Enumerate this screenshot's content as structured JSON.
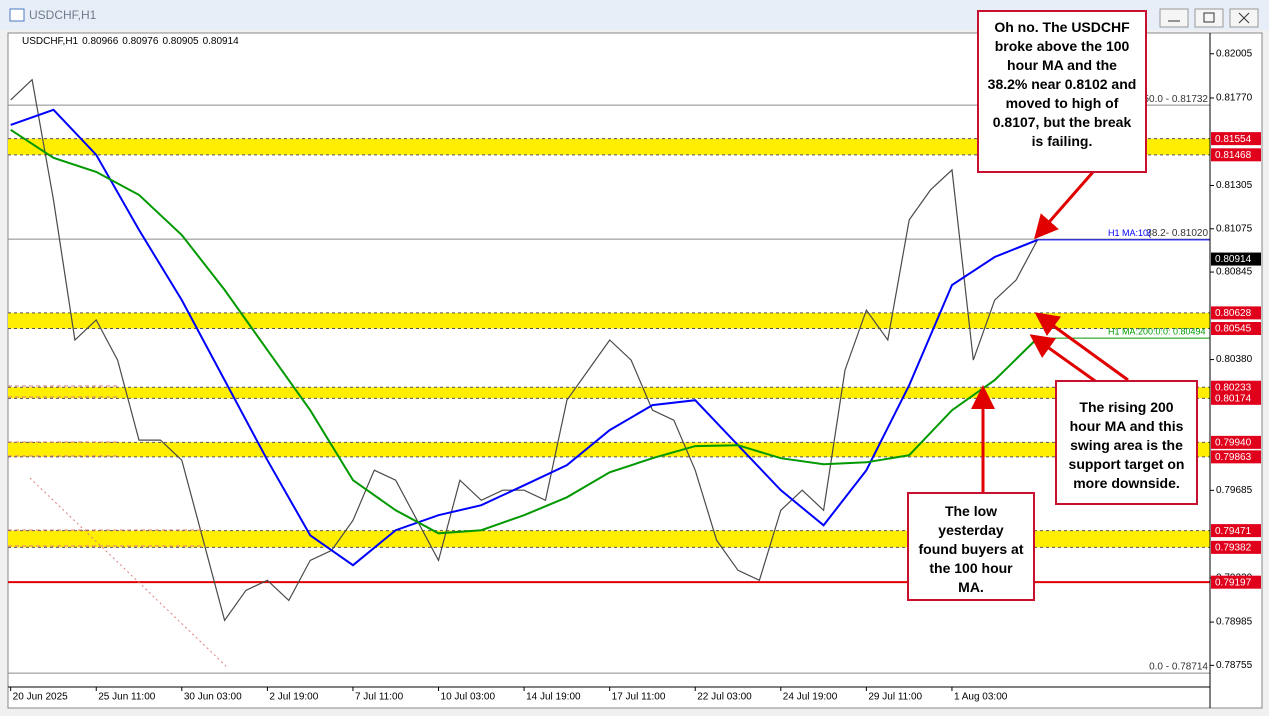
{
  "window_title": "USDCHF,H1",
  "chart_data": {
    "type": "line",
    "title": "USDCHF,H1",
    "ohlc": [
      0.80966,
      0.80976,
      0.80905,
      0.80914
    ],
    "xlim": [
      -2,
      897
    ],
    "ylim": [
      0.7864,
      0.8211
    ],
    "xticks": [
      {
        "value": 0,
        "label": "20 Jun 2025"
      },
      {
        "value": 64,
        "label": "25 Jun 11:00"
      },
      {
        "value": 128,
        "label": "30 Jun 03:00"
      },
      {
        "value": 192,
        "label": "2 Jul 19:00"
      },
      {
        "value": 256,
        "label": "7 Jul 11:00"
      },
      {
        "value": 320,
        "label": "10 Jul 03:00"
      },
      {
        "value": 384,
        "label": "14 Jul 19:00"
      },
      {
        "value": 448,
        "label": "17 Jul 11:00"
      },
      {
        "value": 512,
        "label": "22 Jul 03:00"
      },
      {
        "value": 576,
        "label": "24 Jul 19:00"
      },
      {
        "value": 640,
        "label": "29 Jul 11:00"
      },
      {
        "value": 704,
        "label": "1 Aug 03:00"
      }
    ],
    "yticks": [
      0.82005,
      {
        "value": 0.8177,
        "label": "0.81770"
      },
      0.81305,
      0.81075,
      0.80845,
      {
        "value": 0.8038,
        "label": "0.80380"
      },
      0.79685,
      {
        "value": 0.7922,
        "label": "0.79220"
      },
      0.78985,
      0.78755
    ],
    "x": [
      0,
      16,
      32,
      48,
      64,
      80,
      96,
      112,
      128,
      144,
      160,
      176,
      192,
      208,
      224,
      240,
      256,
      272,
      288,
      304,
      320,
      336,
      352,
      368,
      384,
      400,
      416,
      432,
      448,
      464,
      480,
      496,
      512,
      528,
      544,
      560,
      576,
      592,
      608,
      624,
      640,
      656,
      672,
      688,
      704,
      720,
      736,
      752,
      768
    ],
    "series": [
      {
        "color": "#4a4a4a",
        "values": [
          0.8176,
          0.81867,
          0.81228,
          0.80484,
          0.8059,
          0.80377,
          0.79952,
          0.79952,
          0.79845,
          0.7942,
          0.78994,
          0.79154,
          0.79207,
          0.791,
          0.79313,
          0.79366,
          0.79526,
          0.79792,
          0.79739,
          0.79526,
          0.79313,
          0.79739,
          0.79632,
          0.79686,
          0.79686,
          0.79632,
          0.80164,
          0.80324,
          0.80484,
          0.80377,
          0.80111,
          0.80058,
          0.79792,
          0.7942,
          0.7926,
          0.79207,
          0.79579,
          0.79686,
          0.79579,
          0.80324,
          0.80643,
          0.80484,
          0.81122,
          0.81282,
          0.81388,
          0.80377,
          0.80696,
          0.80803,
          0.81016
        ]
      },
      {
        "color": "#0000ff",
        "x": [
          0,
          32,
          64,
          96,
          128,
          160,
          192,
          224,
          256,
          288,
          320,
          352,
          384,
          416,
          448,
          480,
          512,
          544,
          576,
          608,
          640,
          672,
          704,
          736,
          768
        ],
        "values": [
          0.81627,
          0.81707,
          0.81468,
          0.81069,
          0.80696,
          0.80271,
          0.79845,
          0.79446,
          0.79287,
          0.79473,
          0.79553,
          0.79606,
          0.79712,
          0.79819,
          0.80005,
          0.80138,
          0.80164,
          0.79925,
          0.79686,
          0.79499,
          0.79792,
          0.80244,
          0.80776,
          0.80925,
          0.81016
        ]
      },
      {
        "color": "#009900",
        "x": [
          0,
          32,
          64,
          96,
          128,
          160,
          192,
          224,
          256,
          288,
          320,
          352,
          384,
          416,
          448,
          480,
          512,
          544,
          576,
          608,
          640,
          672,
          704,
          736,
          768
        ],
        "values": [
          0.81601,
          0.81452,
          0.81377,
          0.81255,
          0.81042,
          0.8075,
          0.8043,
          0.80111,
          0.79739,
          0.79579,
          0.79457,
          0.79473,
          0.79553,
          0.79648,
          0.79781,
          0.79856,
          0.7992,
          0.79925,
          0.79856,
          0.79824,
          0.79834,
          0.79872,
          0.80111,
          0.80271,
          0.80494
        ]
      }
    ],
    "ma_labels": [
      "H1 MA:10(",
      "H1 MA:200:0:0: 0.80494"
    ],
    "zones": [
      [
        0.81554,
        0.81468
      ],
      [
        0.80628,
        0.80545
      ],
      [
        0.80233,
        0.80174
      ],
      [
        {
          "value": 0.7994,
          "label": "0.79940"
        },
        0.79863
      ],
      [
        0.79471,
        0.79382
      ]
    ],
    "zone_color": "#ffee00",
    "support_line": 0.79197,
    "fib_levels": [
      {
        "value": 0.81732,
        "label": "50.0 - 0.81732"
      },
      {
        "value": 0.8102,
        "label": "38.2- 0.81020"
      },
      {
        "value": 0.78714,
        "label": "0.0 - 0.78714"
      }
    ],
    "annotations": [
      "Oh no.  The USDCHF broke above the 100 hour MA and the 38.2% near 0.8102 and moved to high of 0.8107, but the break is failing.",
      "The rising 200 hour MA and this swing area is the support target on more downside.",
      "The low yesterday found buyers at the 100 hour MA."
    ]
  }
}
